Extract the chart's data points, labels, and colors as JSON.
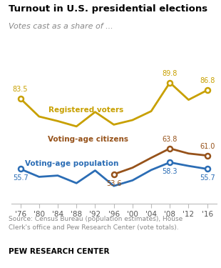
{
  "title": "Turnout in U.S. presidential elections",
  "subtitle": "Votes cast as a share of ...",
  "years": [
    1976,
    1980,
    1984,
    1988,
    1992,
    1996,
    2000,
    2004,
    2008,
    2012,
    2016
  ],
  "registered_voters": [
    83.5,
    76.4,
    74.6,
    72.5,
    78.2,
    73.2,
    75.0,
    78.5,
    89.8,
    83.0,
    86.8
  ],
  "voting_age_citizens": [
    null,
    null,
    null,
    null,
    null,
    53.6,
    56.2,
    60.1,
    63.8,
    61.8,
    61.0
  ],
  "voting_age_population": [
    55.7,
    52.6,
    53.1,
    50.1,
    55.1,
    49.0,
    51.2,
    55.3,
    58.3,
    56.9,
    55.7
  ],
  "registered_color": "#c8a000",
  "citizens_color": "#96521a",
  "population_color": "#2b6db5",
  "highlight_years_reg": [
    1976,
    2008,
    2016
  ],
  "highlight_vals_reg": [
    83.5,
    89.8,
    86.8
  ],
  "highlight_years_cit": [
    1996,
    2008,
    2016
  ],
  "highlight_vals_cit": [
    53.6,
    63.8,
    61.0
  ],
  "highlight_years_pop": [
    1976,
    2008,
    2016
  ],
  "highlight_vals_pop": [
    55.7,
    58.3,
    55.7
  ],
  "label_reg_text": [
    "83.5",
    "89.8",
    "86.8"
  ],
  "label_cit_text": [
    "53.6",
    "63.8",
    "61.0"
  ],
  "label_pop_text": [
    "55.7",
    "58.3",
    "55.7"
  ],
  "tick_years": [
    1976,
    1980,
    1984,
    1988,
    1992,
    1996,
    2000,
    2004,
    2008,
    2012,
    2016
  ],
  "tick_labels": [
    "'76",
    "'80",
    "'84",
    "'88",
    "'92",
    "'96",
    "'00",
    "'04",
    "'08",
    "'12",
    "'16"
  ],
  "xlim": [
    1974,
    2018
  ],
  "ylim": [
    42,
    97
  ],
  "source_text": "Source: Census Bureau (population estimates), House\nClerk's office and Pew Research Center (vote totals).",
  "footer_text": "PEW RESEARCH CENTER"
}
